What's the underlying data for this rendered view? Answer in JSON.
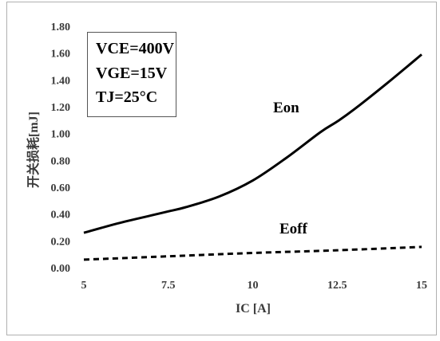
{
  "chart_data": {
    "type": "line",
    "xlabel": "IC [A]",
    "ylabel": "开关损耗[mJ]",
    "x_ticks": [
      "5",
      "7.5",
      "10",
      "12.5",
      "15"
    ],
    "y_ticks": [
      "0.00",
      "0.20",
      "0.40",
      "0.60",
      "0.80",
      "1.00",
      "1.20",
      "1.40",
      "1.60",
      "1.80"
    ],
    "xlim": [
      5,
      15
    ],
    "ylim": [
      0,
      1.8
    ],
    "grid": false,
    "conditions": [
      "VCE=400V",
      "VGE=15V",
      "TJ=25°C"
    ],
    "series": [
      {
        "name": "Eon",
        "style": "solid",
        "color": "#000000",
        "x": [
          5,
          6,
          7,
          7.5,
          8,
          9,
          10,
          11,
          12,
          12.5,
          13,
          14,
          15
        ],
        "y": [
          0.26,
          0.33,
          0.39,
          0.42,
          0.45,
          0.53,
          0.65,
          0.82,
          1.01,
          1.09,
          1.18,
          1.38,
          1.59
        ]
      },
      {
        "name": "Eoff",
        "style": "dashed",
        "color": "#000000",
        "x": [
          5,
          7.5,
          10,
          12.5,
          15
        ],
        "y": [
          0.06,
          0.085,
          0.11,
          0.13,
          0.155
        ]
      }
    ]
  }
}
